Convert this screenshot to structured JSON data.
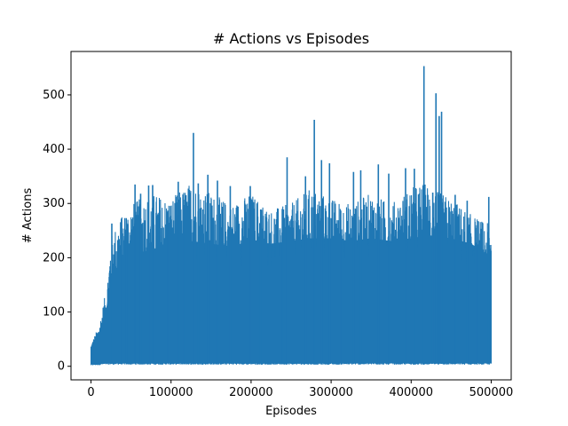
{
  "chart_data": {
    "type": "line",
    "title": "# Actions vs Episodes",
    "xlabel": "Episodes",
    "ylabel": "# Actions",
    "xlim": [
      -25000,
      525000
    ],
    "ylim": [
      -25,
      580
    ],
    "x_ticks": [
      0,
      100000,
      200000,
      300000,
      400000,
      500000
    ],
    "x_tick_labels": [
      "0",
      "100000",
      "200000",
      "300000",
      "400000",
      "500000"
    ],
    "y_ticks": [
      0,
      100,
      200,
      300,
      400,
      500
    ],
    "y_tick_labels": [
      "0",
      "100",
      "200",
      "300",
      "400",
      "500"
    ],
    "grid": false,
    "legend": "none",
    "series": [
      {
        "color": "#1f77b4",
        "x": [
          0,
          10000,
          20000,
          25000,
          35000,
          50000,
          75000,
          100000,
          125000,
          150000,
          175000,
          200000,
          225000,
          250000,
          275000,
          300000,
          325000,
          350000,
          375000,
          400000,
          418000,
          425000,
          450000,
          475000,
          500000
        ],
        "y_max": [
          42,
          75,
          150,
          240,
          270,
          300,
          320,
          310,
          340,
          320,
          300,
          320,
          290,
          300,
          330,
          310,
          300,
          320,
          300,
          330,
          340,
          330,
          310,
          280,
          260
        ],
        "y_min": [
          1,
          2,
          3,
          3,
          3,
          3,
          3,
          3,
          3,
          3,
          3,
          3,
          3,
          3,
          3,
          3,
          3,
          3,
          3,
          3,
          3,
          3,
          3,
          3,
          3
        ],
        "body_top": [
          30,
          60,
          110,
          160,
          185,
          200,
          215,
          220,
          230,
          225,
          220,
          230,
          225,
          230,
          235,
          235,
          230,
          235,
          230,
          235,
          240,
          240,
          235,
          225,
          200
        ],
        "spikes": [
          {
            "x": 26000,
            "y": 263
          },
          {
            "x": 38000,
            "y": 272
          },
          {
            "x": 44000,
            "y": 273
          },
          {
            "x": 55000,
            "y": 335
          },
          {
            "x": 62000,
            "y": 318
          },
          {
            "x": 72000,
            "y": 333
          },
          {
            "x": 77000,
            "y": 334
          },
          {
            "x": 96000,
            "y": 287
          },
          {
            "x": 109000,
            "y": 340
          },
          {
            "x": 116000,
            "y": 290
          },
          {
            "x": 128000,
            "y": 430
          },
          {
            "x": 134000,
            "y": 337
          },
          {
            "x": 146000,
            "y": 353
          },
          {
            "x": 158000,
            "y": 342
          },
          {
            "x": 174000,
            "y": 332
          },
          {
            "x": 199000,
            "y": 332
          },
          {
            "x": 212000,
            "y": 289
          },
          {
            "x": 239000,
            "y": 290
          },
          {
            "x": 245000,
            "y": 385
          },
          {
            "x": 268000,
            "y": 350
          },
          {
            "x": 279000,
            "y": 454
          },
          {
            "x": 288000,
            "y": 380
          },
          {
            "x": 298000,
            "y": 374
          },
          {
            "x": 312000,
            "y": 287
          },
          {
            "x": 328000,
            "y": 358
          },
          {
            "x": 337000,
            "y": 361
          },
          {
            "x": 359000,
            "y": 372
          },
          {
            "x": 372000,
            "y": 355
          },
          {
            "x": 393000,
            "y": 365
          },
          {
            "x": 404000,
            "y": 364
          },
          {
            "x": 416000,
            "y": 553
          },
          {
            "x": 427000,
            "y": 320
          },
          {
            "x": 431000,
            "y": 503
          },
          {
            "x": 435000,
            "y": 461
          },
          {
            "x": 438000,
            "y": 469
          },
          {
            "x": 455000,
            "y": 316
          },
          {
            "x": 470000,
            "y": 305
          },
          {
            "x": 482000,
            "y": 260
          },
          {
            "x": 497000,
            "y": 312
          }
        ]
      }
    ]
  }
}
